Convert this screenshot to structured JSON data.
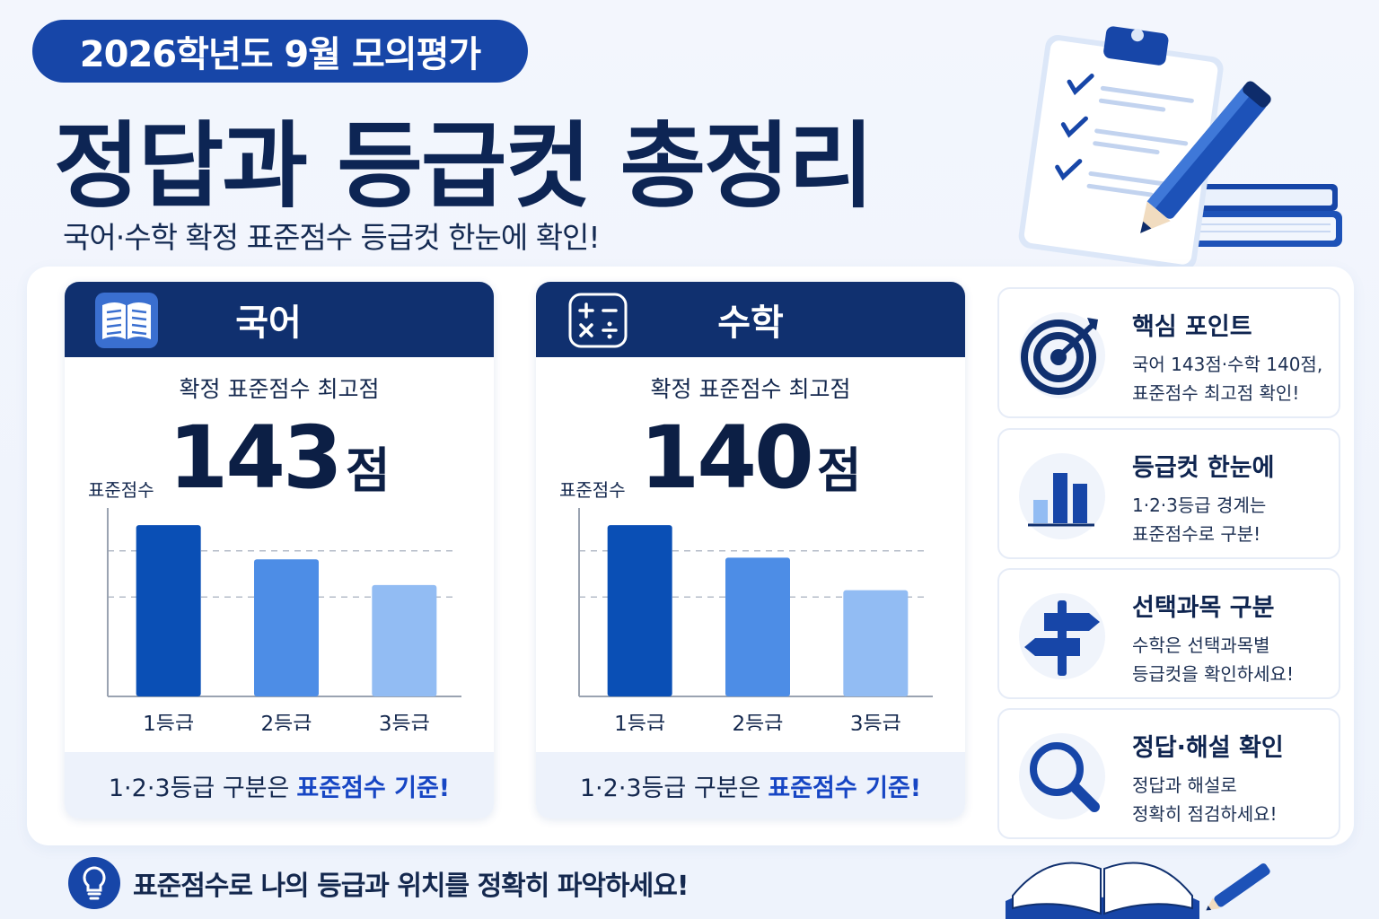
{
  "header": {
    "badge": "2026학년도 9월 모의평가",
    "title": "정답과 등급컷 총정리",
    "subtitle": "국어·수학 확정 표준점수 등급컷 한눈에 확인!"
  },
  "subjects": [
    {
      "name": "국어",
      "icon": "book-icon",
      "score_label": "확정 표준점수 최고점",
      "score": "143",
      "unit": "점",
      "axis_label": "표준점수",
      "footer_prefix": "1·2·3등급 구분은",
      "footer_highlight": "표준점수 기준!"
    },
    {
      "name": "수학",
      "icon": "calculator-icon",
      "score_label": "확정 표준점수 최고점",
      "score": "140",
      "unit": "점",
      "axis_label": "표준점수",
      "footer_prefix": "1·2·3등급 구분은",
      "footer_highlight": "표준점수 기준!"
    }
  ],
  "chart_data": [
    {
      "type": "bar",
      "title": "",
      "ylabel": "표준점수",
      "categories": [
        "1등급",
        "2등급",
        "3등급"
      ],
      "values": [
        100,
        80,
        65
      ],
      "ylim": [
        0,
        110
      ],
      "grid": "dashed horizontal",
      "colors": [
        "#0a4fb5",
        "#4d8de6",
        "#92bcf3"
      ]
    },
    {
      "type": "bar",
      "title": "",
      "ylabel": "표준점수",
      "categories": [
        "1등급",
        "2등급",
        "3등급"
      ],
      "values": [
        100,
        81,
        62
      ],
      "ylim": [
        0,
        110
      ],
      "grid": "dashed horizontal",
      "colors": [
        "#0a4fb5",
        "#4d8de6",
        "#92bcf3"
      ]
    }
  ],
  "info_cards": [
    {
      "icon": "target-icon",
      "title": "핵심 포인트",
      "line1": "국어 143점·수학 140점,",
      "line2": "표준점수 최고점 확인!"
    },
    {
      "icon": "bar-chart-icon",
      "title": "등급컷 한눈에",
      "line1": "1·2·3등급 경계는",
      "line2": "표준점수로 구분!"
    },
    {
      "icon": "signpost-icon",
      "title": "선택과목 구분",
      "line1": "수학은 선택과목별",
      "line2": "등급컷을 확인하세요!"
    },
    {
      "icon": "magnifier-icon",
      "title": "정답·해설 확인",
      "line1": "정답과 해설로",
      "line2": "정확히 점검하세요!"
    }
  ],
  "footer": {
    "icon": "lightbulb-icon",
    "tip": "표준점수로 나의 등급과 위치를 정확히 파악하세요!"
  },
  "colors": {
    "navy": "#10306f",
    "accent": "#1746a8",
    "highlight": "#1746c4",
    "bar_1": "#0a4fb5",
    "bar_2": "#4d8de6",
    "bar_3": "#92bcf3"
  }
}
